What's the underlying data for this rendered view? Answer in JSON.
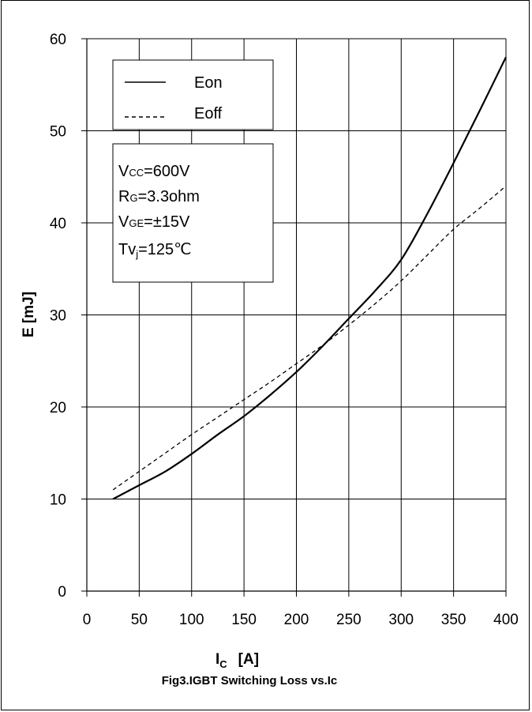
{
  "chart_data": {
    "type": "line",
    "title": "Fig3.IGBT Switching Loss vs.Ic",
    "xlabel": "I",
    "xlabel_sub": "C",
    "xlabel_unit": "[A]",
    "ylabel": "E  [mJ]",
    "xlim": [
      0,
      400
    ],
    "ylim": [
      0,
      60
    ],
    "xticks": [
      0,
      50,
      100,
      150,
      200,
      250,
      300,
      350,
      400
    ],
    "yticks": [
      0,
      10,
      20,
      30,
      40,
      50,
      60
    ],
    "grid": true,
    "legend_position": "top-left",
    "series": [
      {
        "name": "Eon",
        "style": "solid",
        "color": "#000000",
        "x": [
          25,
          50,
          75,
          100,
          125,
          150,
          175,
          200,
          225,
          250,
          275,
          300,
          325,
          350,
          375,
          400
        ],
        "y": [
          10,
          11.5,
          13,
          14.9,
          17,
          19,
          21.3,
          23.8,
          26.6,
          29.6,
          32.6,
          36,
          41,
          46.5,
          52.2,
          58
        ]
      },
      {
        "name": "Eoff",
        "style": "dashed",
        "color": "#000000",
        "x": [
          25,
          50,
          75,
          100,
          125,
          150,
          175,
          200,
          225,
          250,
          275,
          300,
          325,
          350,
          375,
          400
        ],
        "y": [
          11,
          13,
          15,
          17,
          18.9,
          20.8,
          22.7,
          24.7,
          26.7,
          28.9,
          31.2,
          33.7,
          36.5,
          39.3,
          41.6,
          44
        ]
      }
    ],
    "conditions": [
      {
        "main": "V",
        "sub": "CC",
        "rest": "=600V"
      },
      {
        "main": "R",
        "sub": "G",
        "rest": "=3.3ohm"
      },
      {
        "main": "V",
        "sub": "GE",
        "rest": "=±15V"
      },
      {
        "main": "Tv",
        "sub": "j",
        "rest": "=125℃"
      }
    ]
  }
}
